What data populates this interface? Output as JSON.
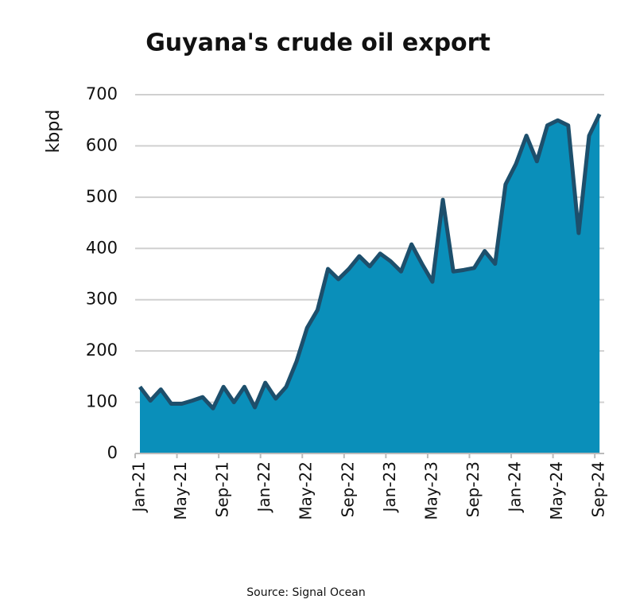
{
  "chart_data": {
    "type": "area",
    "title": "Guyana's crude oil export",
    "y_label": "kbpd",
    "source": "Source: Signal Ocean",
    "categories": [
      "Jan-21",
      null,
      null,
      null,
      "May-21",
      null,
      null,
      null,
      "Sep-21",
      null,
      null,
      null,
      "Jan-22",
      null,
      null,
      null,
      "May-22",
      null,
      null,
      null,
      "Sep-22",
      null,
      null,
      null,
      "Jan-23",
      null,
      null,
      null,
      "May-23",
      null,
      null,
      null,
      "Sep-23",
      null,
      null,
      null,
      "Jan-24",
      null,
      null,
      null,
      "May-24",
      null,
      null,
      null,
      "Sep-24"
    ],
    "series": [
      {
        "name": "Crude oil export",
        "color": "#0a8fba",
        "line_color": "#1d4f6c",
        "values": [
          130,
          103,
          125,
          97,
          97,
          103,
          110,
          88,
          130,
          100,
          130,
          90,
          138,
          107,
          130,
          180,
          245,
          280,
          360,
          340,
          360,
          385,
          365,
          390,
          375,
          355,
          408,
          370,
          335,
          495,
          355,
          358,
          362,
          395,
          370,
          525,
          565,
          620,
          570,
          640,
          650,
          640,
          430,
          620,
          662
        ]
      }
    ],
    "ylim": [
      0,
      700
    ],
    "yticks": [
      0,
      100,
      200,
      300,
      400,
      500,
      600,
      700
    ],
    "grid": true
  }
}
